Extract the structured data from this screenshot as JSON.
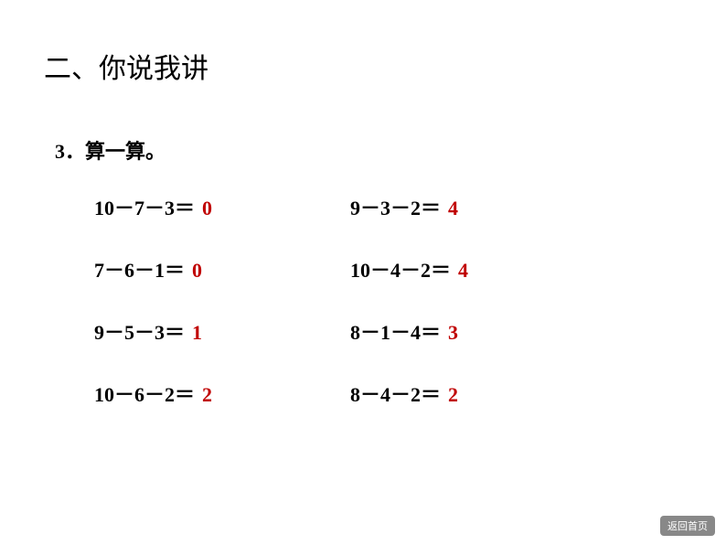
{
  "section_title": "二、你说我讲",
  "subtitle": "3．算一算。",
  "colors": {
    "text": "#000000",
    "answer": "#c00000",
    "background": "#ffffff",
    "button_bg": "#888888",
    "button_text": "#ffffff"
  },
  "typography": {
    "title_fontsize": 30,
    "subtitle_fontsize": 22,
    "equation_fontsize": 22,
    "button_fontsize": 11
  },
  "equations": [
    {
      "left": {
        "expression": "10－7－3＝",
        "answer": "0"
      },
      "right": {
        "expression": "9－3－2＝",
        "answer": "4"
      }
    },
    {
      "left": {
        "expression": "7－6－1＝",
        "answer": "0"
      },
      "right": {
        "expression": "10－4－2＝",
        "answer": "4"
      }
    },
    {
      "left": {
        "expression": "9－5－3＝",
        "answer": "1"
      },
      "right": {
        "expression": "8－1－4＝",
        "answer": "3"
      }
    },
    {
      "left": {
        "expression": "10－6－2＝",
        "answer": "2"
      },
      "right": {
        "expression": "8－4－2＝",
        "answer": "2"
      }
    }
  ],
  "back_button_label": "返回首页"
}
